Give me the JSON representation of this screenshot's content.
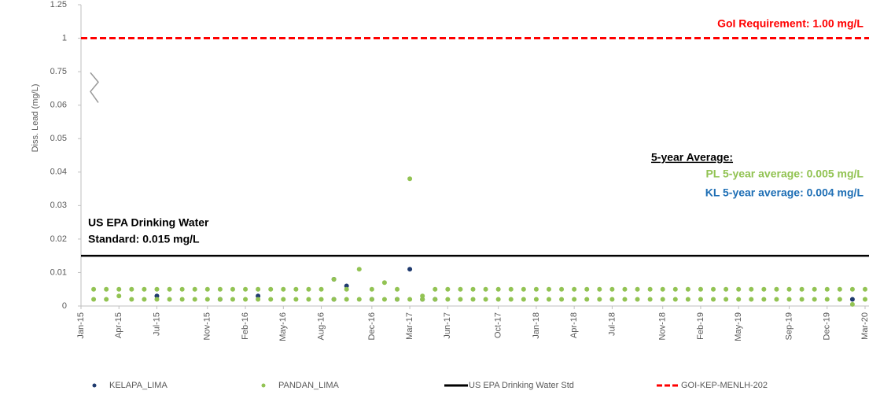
{
  "chart_data": {
    "type": "scatter",
    "y_label": "Diss. Lead (mg/L)",
    "ylim": [
      0,
      1.25
    ],
    "y_break": [
      0.06,
      0.75
    ],
    "yticks": [
      0,
      0.01,
      0.02,
      0.03,
      0.04,
      0.05,
      0.06,
      0.75,
      1,
      1.25
    ],
    "xlim": [
      "2015-01",
      "2020-03"
    ],
    "xticks": [
      {
        "value": "2015-01",
        "label": "Jan-15"
      },
      {
        "value": "2015-04",
        "label": "Apr-15"
      },
      {
        "value": "2015-07",
        "label": "Jul-15"
      },
      {
        "value": "2015-11",
        "label": "Nov-15"
      },
      {
        "value": "2016-02",
        "label": "Feb-16"
      },
      {
        "value": "2016-05",
        "label": "May-16"
      },
      {
        "value": "2016-08",
        "label": "Aug-16"
      },
      {
        "value": "2016-12",
        "label": "Dec-16"
      },
      {
        "value": "2017-03",
        "label": "Mar-17"
      },
      {
        "value": "2017-06",
        "label": "Jun-17"
      },
      {
        "value": "2017-10",
        "label": "Oct-17"
      },
      {
        "value": "2018-01",
        "label": "Jan-18"
      },
      {
        "value": "2018-04",
        "label": "Apr-18"
      },
      {
        "value": "2018-07",
        "label": "Jul-18"
      },
      {
        "value": "2018-11",
        "label": "Nov-18"
      },
      {
        "value": "2019-02",
        "label": "Feb-19"
      },
      {
        "value": "2019-05",
        "label": "May-19"
      },
      {
        "value": "2019-09",
        "label": "Sep-19"
      },
      {
        "value": "2019-12",
        "label": "Dec-19"
      },
      {
        "value": "2020-03",
        "label": "Mar-20"
      }
    ],
    "series": [
      {
        "name": "KELAPA_LIMA",
        "color": "#1f3a6e",
        "x": [
          "2015-07",
          "2015-12",
          "2016-03",
          "2016-09",
          "2016-09",
          "2016-10",
          "2016-12",
          "2017-02",
          "2017-03",
          "2017-04",
          "2017-05",
          "2020-02"
        ],
        "values": [
          0.003,
          0.002,
          0.003,
          0.008,
          0.002,
          0.006,
          0.002,
          0.002,
          0.011,
          0.002,
          0.002,
          0.002
        ]
      },
      {
        "name": "PANDAN_LIMA",
        "color": "#92c353",
        "x": [
          "2015-02",
          "2015-03",
          "2015-04",
          "2015-05",
          "2015-06",
          "2015-07",
          "2015-08",
          "2015-09",
          "2015-10",
          "2015-11",
          "2015-12",
          "2016-01",
          "2016-02",
          "2016-03",
          "2016-04",
          "2016-05",
          "2016-06",
          "2016-07",
          "2016-08",
          "2016-09",
          "2016-10",
          "2016-11",
          "2016-12",
          "2017-01",
          "2017-02",
          "2017-03",
          "2017-04",
          "2017-05",
          "2017-06",
          "2017-07",
          "2017-08",
          "2017-09",
          "2017-10",
          "2017-11",
          "2017-12",
          "2018-01",
          "2018-02",
          "2018-03",
          "2018-04",
          "2018-05",
          "2018-06",
          "2018-07",
          "2018-08",
          "2018-09",
          "2018-10",
          "2018-11",
          "2018-12",
          "2019-01",
          "2019-02",
          "2019-03",
          "2019-04",
          "2019-05",
          "2019-06",
          "2019-07",
          "2019-08",
          "2019-09",
          "2019-10",
          "2019-11",
          "2019-12",
          "2020-01",
          "2020-02",
          "2020-03",
          "2015-02",
          "2015-03",
          "2015-04",
          "2015-05",
          "2015-06",
          "2015-07",
          "2015-08",
          "2015-09",
          "2015-10",
          "2015-11",
          "2015-12",
          "2016-01",
          "2016-02",
          "2016-03",
          "2016-04",
          "2016-05",
          "2016-06",
          "2016-07",
          "2016-08",
          "2016-09",
          "2016-10",
          "2016-11",
          "2016-12",
          "2017-01",
          "2017-02",
          "2017-03",
          "2017-04",
          "2017-05",
          "2017-06",
          "2017-07",
          "2017-08",
          "2017-09",
          "2017-10",
          "2017-11",
          "2017-12",
          "2018-01",
          "2018-02",
          "2018-03",
          "2018-04",
          "2018-05",
          "2018-06",
          "2018-07",
          "2018-08",
          "2018-09",
          "2018-10",
          "2018-11",
          "2018-12",
          "2019-01",
          "2019-02",
          "2019-03",
          "2019-04",
          "2019-05",
          "2019-06",
          "2019-07",
          "2019-08",
          "2019-09",
          "2019-10",
          "2019-11",
          "2019-12",
          "2020-01",
          "2020-02",
          "2020-03"
        ],
        "values": [
          0.005,
          0.005,
          0.005,
          0.005,
          0.005,
          0.005,
          0.005,
          0.005,
          0.005,
          0.005,
          0.005,
          0.005,
          0.005,
          0.005,
          0.005,
          0.005,
          0.005,
          0.005,
          0.005,
          0.008,
          0.005,
          0.011,
          0.005,
          0.007,
          0.005,
          0.038,
          0.003,
          0.005,
          0.005,
          0.005,
          0.005,
          0.005,
          0.005,
          0.005,
          0.005,
          0.005,
          0.005,
          0.005,
          0.005,
          0.005,
          0.005,
          0.005,
          0.005,
          0.005,
          0.005,
          0.005,
          0.005,
          0.005,
          0.005,
          0.005,
          0.005,
          0.005,
          0.005,
          0.005,
          0.005,
          0.005,
          0.005,
          0.005,
          0.005,
          0.005,
          0.005,
          0.005,
          0.002,
          0.002,
          0.003,
          0.002,
          0.002,
          0.002,
          0.002,
          0.002,
          0.002,
          0.002,
          0.002,
          0.002,
          0.002,
          0.002,
          0.002,
          0.002,
          0.002,
          0.002,
          0.002,
          0.002,
          0.002,
          0.002,
          0.002,
          0.002,
          0.002,
          0.002,
          0.002,
          0.002,
          0.002,
          0.002,
          0.002,
          0.002,
          0.002,
          0.002,
          0.002,
          0.002,
          0.002,
          0.002,
          0.002,
          0.002,
          0.002,
          0.002,
          0.002,
          0.002,
          0.002,
          0.002,
          0.002,
          0.002,
          0.002,
          0.002,
          0.002,
          0.002,
          0.002,
          0.002,
          0.002,
          0.002,
          0.002,
          0.002,
          0.002,
          0.002,
          0.0005,
          0.002
        ]
      }
    ],
    "lines": [
      {
        "name": "US EPA Drinking Water Std",
        "value": 0.015,
        "color": "#000000",
        "dashed": false
      },
      {
        "name": "GOI-KEP-MENLH-202",
        "value": 1,
        "color": "#ff0000",
        "dashed": true
      }
    ],
    "annotations": {
      "goi": "GoI Requirement: 1.00 mg/L",
      "epa": [
        "US EPA Drinking Water",
        "Standard: 0.015 mg/L"
      ],
      "avg_title": "5-year Average:",
      "pl_avg": "PL 5-year average: 0.005 mg/L",
      "kl_avg": "KL 5-year average: 0.004 mg/L"
    }
  }
}
